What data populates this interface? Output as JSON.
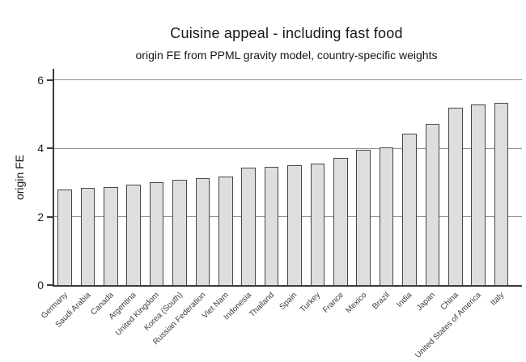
{
  "chart_data": {
    "type": "bar",
    "title": "Cuisine appeal - including fast food",
    "subtitle": "origin FE from PPML gravity model, country-specific weights",
    "ylabel": "origin FE",
    "xlabel": "",
    "categories": [
      "Germany",
      "Saudi Arabia",
      "Canada",
      "Argentina",
      "United Kingdom",
      "Korea (South)",
      "Russian Federation",
      "Viet Nam",
      "Indonesia",
      "Thailand",
      "Spain",
      "Turkey",
      "France",
      "Mexico",
      "Brazil",
      "India",
      "Japan",
      "China",
      "United States of America",
      "Italy"
    ],
    "values": [
      2.8,
      2.85,
      2.86,
      2.94,
      3.0,
      3.09,
      3.12,
      3.17,
      3.44,
      3.46,
      3.52,
      3.55,
      3.72,
      3.97,
      4.03,
      4.44,
      4.73,
      5.19,
      5.28,
      5.33
    ],
    "yticks": [
      0,
      2,
      4,
      6
    ],
    "ylim": [
      0,
      6.33
    ],
    "grid": "horizontal",
    "legend": "none",
    "colors": {
      "bar_fill": "#dedede",
      "bar_border": "#474747",
      "gridline": "#8f8f8f",
      "axis": "#3a3a3a",
      "text": "#161616"
    }
  }
}
